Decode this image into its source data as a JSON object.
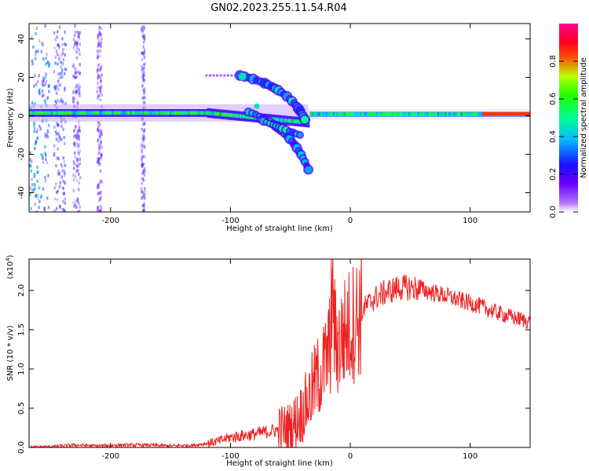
{
  "title": "GN02.2023.255.11.54.R04",
  "chart_data": [
    {
      "type": "heatmap",
      "xlabel": "Height of straight line (km)",
      "ylabel": "Frequency (Hz)",
      "xlim": [
        -268,
        150
      ],
      "ylim": [
        -50,
        48
      ],
      "x_ticks": [
        -200,
        -100,
        0,
        100
      ],
      "y_ticks": [
        -40,
        -20,
        0,
        20,
        40
      ],
      "colorbar": {
        "label": "Normalized spectral amplitude",
        "ticks": [
          "0.0",
          "0.2",
          "0.4",
          "0.6",
          "0.8"
        ],
        "range": [
          0,
          1
        ],
        "colors": [
          "#ffffff",
          "#8a00ff",
          "#2200ff",
          "#00d0ff",
          "#00ff50",
          "#d0ff00",
          "#ff1000",
          "#ff0090"
        ]
      },
      "features": [
        {
          "name": "main_band",
          "x_range": [
            -268,
            150
          ],
          "frequency": 1.5,
          "amplitude": 0.5
        },
        {
          "name": "up_branch",
          "from": [
            -90,
            20
          ],
          "to": [
            -38,
            -3
          ]
        },
        {
          "name": "down_branch",
          "from": [
            -80,
            -5
          ],
          "to": [
            -35,
            -28
          ]
        }
      ]
    },
    {
      "type": "line",
      "xlabel": "Height of straight line (km)",
      "ylabel": "SNR (10 * v/v)",
      "yscale_label": "(x10",
      "yscale_exp": "4",
      "yscale_close": ")",
      "xlim": [
        -268,
        150
      ],
      "ylim": [
        0,
        2.4
      ],
      "x_ticks": [
        -200,
        -100,
        0,
        100
      ],
      "y_ticks": [
        "0.0",
        "0.5",
        "1.0",
        "1.5",
        "2.0"
      ],
      "series": [
        {
          "color": "#ee2222",
          "x": [
            -268,
            -250,
            -230,
            -210,
            -190,
            -170,
            -150,
            -130,
            -120,
            -110,
            -100,
            -90,
            -80,
            -70,
            -60,
            -50,
            -45,
            -40,
            -35,
            -30,
            -25,
            -20,
            -17,
            -15,
            -13,
            -10,
            -5,
            0,
            5,
            10,
            20,
            30,
            40,
            50,
            60,
            70,
            80,
            90,
            100,
            110,
            120,
            130,
            140,
            150
          ],
          "values": [
            0.0,
            0.01,
            0.03,
            0.02,
            0.03,
            0.03,
            0.02,
            0.03,
            0.05,
            0.08,
            0.13,
            0.15,
            0.17,
            0.2,
            0.22,
            0.25,
            0.35,
            0.45,
            0.6,
            0.8,
            0.95,
            1.1,
            1.3,
            1.6,
            1.45,
            1.3,
            1.45,
            1.55,
            1.65,
            1.75,
            1.9,
            1.98,
            2.03,
            2.04,
            2.01,
            1.97,
            1.93,
            1.88,
            1.84,
            1.79,
            1.73,
            1.68,
            1.64,
            1.6
          ]
        }
      ]
    }
  ]
}
